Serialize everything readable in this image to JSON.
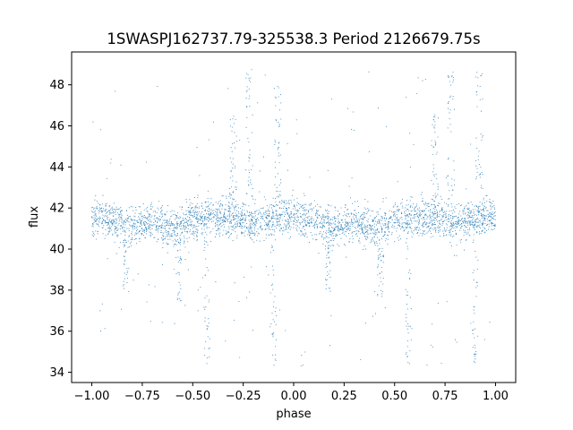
{
  "chart_data": {
    "type": "scatter",
    "title": "1SWASPJ162737.79-325538.3 Period 2126679.75s",
    "xlabel": "phase",
    "ylabel": "flux",
    "xlim": [
      -1.1,
      1.1
    ],
    "ylim": [
      33.5,
      49.6
    ],
    "grid": false,
    "legend": "none",
    "x_ticks": [
      -1.0,
      -0.75,
      -0.5,
      -0.25,
      0.0,
      0.25,
      0.5,
      0.75,
      1.0
    ],
    "x_tick_labels": [
      "−1.00",
      "−0.75",
      "−0.50",
      "−0.25",
      "0.00",
      "0.25",
      "0.50",
      "0.75",
      "1.00"
    ],
    "y_ticks": [
      34,
      36,
      38,
      40,
      42,
      44,
      46,
      48
    ],
    "y_tick_labels": [
      "34",
      "36",
      "38",
      "40",
      "42",
      "44",
      "46",
      "48"
    ],
    "series": [
      {
        "color": "#1f77b4",
        "marker": "point",
        "phase_range": [
          -1.0,
          1.0
        ],
        "folded_period": 1.0,
        "bulk_flux_range": [
          39.5,
          43.5
        ],
        "median_flux_by_phase": [
          {
            "x": -1.0,
            "y": 41.6
          },
          {
            "x": -0.9,
            "y": 41.4
          },
          {
            "x": -0.8,
            "y": 41.1
          },
          {
            "x": -0.7,
            "y": 41.3
          },
          {
            "x": -0.6,
            "y": 40.9
          },
          {
            "x": -0.5,
            "y": 41.5
          },
          {
            "x": -0.4,
            "y": 41.5
          },
          {
            "x": -0.3,
            "y": 41.6
          },
          {
            "x": -0.2,
            "y": 41.3
          },
          {
            "x": -0.1,
            "y": 41.5
          },
          {
            "x": 0.0,
            "y": 41.6
          },
          {
            "x": 0.1,
            "y": 41.4
          },
          {
            "x": 0.2,
            "y": 41.1
          },
          {
            "x": 0.3,
            "y": 41.3
          },
          {
            "x": 0.4,
            "y": 40.9
          },
          {
            "x": 0.5,
            "y": 41.5
          },
          {
            "x": 0.6,
            "y": 41.5
          },
          {
            "x": 0.7,
            "y": 41.6
          },
          {
            "x": 0.8,
            "y": 41.3
          },
          {
            "x": 0.9,
            "y": 41.5
          },
          {
            "x": 1.0,
            "y": 41.6
          }
        ],
        "high_excursions": [
          {
            "x": -0.3,
            "y_max": 46.7
          },
          {
            "x": -0.22,
            "y_max": 48.8
          },
          {
            "x": -0.08,
            "y_max": 48.8
          },
          {
            "x": 0.7,
            "y_max": 46.7
          },
          {
            "x": 0.78,
            "y_max": 48.8
          },
          {
            "x": 0.92,
            "y_max": 48.8
          }
        ],
        "low_excursions": [
          {
            "x": -0.83,
            "y_min": 37.9
          },
          {
            "x": -0.57,
            "y_min": 37.4
          },
          {
            "x": -0.43,
            "y_min": 34.3
          },
          {
            "x": -0.1,
            "y_min": 34.3
          },
          {
            "x": 0.17,
            "y_min": 37.9
          },
          {
            "x": 0.43,
            "y_min": 37.4
          },
          {
            "x": 0.57,
            "y_min": 34.3
          },
          {
            "x": 0.9,
            "y_min": 34.3
          }
        ]
      }
    ]
  }
}
